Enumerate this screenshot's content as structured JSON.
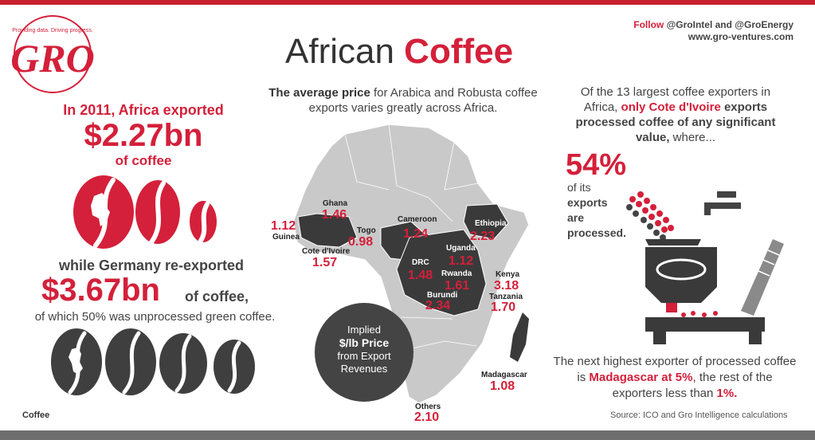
{
  "header": {
    "title_part1": "African ",
    "title_part2": "Coffee",
    "follow_label": "Follow",
    "follow_handles": "@GroIntel and @GroEnergy",
    "website": "www.gro-ventures.com"
  },
  "logo": {
    "letters": "GRO",
    "tagline": "Providing data. Driving progress."
  },
  "left": {
    "line1": "In 2011, Africa exported",
    "value1": "$2.27bn",
    "line2": "of coffee",
    "line3": "while Germany re-exported",
    "value2": "$3.67bn",
    "line4": "of coffee,",
    "line5": "of which 50% was unprocessed green coffee.",
    "footer": "Coffee"
  },
  "center": {
    "intro_bold": "The average price",
    "intro_rest": " for Arabica and Robusta coffee exports varies greatly across Africa.",
    "circle": {
      "line1": "Implied",
      "line2": "$/lb Price",
      "line3": "from Export",
      "line4": "Revenues"
    },
    "countries": [
      {
        "name": "Guinea",
        "value": "1.12"
      },
      {
        "name": "Ghana",
        "value": "1.46"
      },
      {
        "name": "Togo",
        "value": "0.98"
      },
      {
        "name": "Cote d'Ivoire",
        "value": "1.57"
      },
      {
        "name": "Cameroon",
        "value": "1.24"
      },
      {
        "name": "Ethiopia",
        "value": "2.23"
      },
      {
        "name": "Uganda",
        "value": "1.12"
      },
      {
        "name": "DRC",
        "value": "1.48"
      },
      {
        "name": "Rwanda",
        "value": "1.61"
      },
      {
        "name": "Burundi",
        "value": "2.34"
      },
      {
        "name": "Kenya",
        "value": "3.18"
      },
      {
        "name": "Tanzania",
        "value": "1.70"
      },
      {
        "name": "Madagascar",
        "value": "1.08"
      },
      {
        "name": "Others",
        "value": "2.10"
      }
    ]
  },
  "right": {
    "intro1": "Of the 13 largest coffee exporters in Africa, ",
    "intro_red": "only Cote d'Ivoire",
    "intro_bold": " exports processed coffee of any significant value,",
    "intro2": " where...",
    "percent": "54%",
    "pct_line1": "of its",
    "pct_line2": "exports",
    "pct_line3": "are",
    "pct_line4": "processed.",
    "next1": "The next highest exporter of processed coffee is ",
    "next_red": "Madagascar at 5%",
    "next2": ", the rest of the exporters less than ",
    "next_red2": "1%.",
    "source": "Source: ICO and Gro Intelligence calculations"
  },
  "colors": {
    "accent": "#d4203a",
    "dark": "#444444",
    "map_grey": "#c9c9c9",
    "highlight": "#3a3a3a"
  }
}
